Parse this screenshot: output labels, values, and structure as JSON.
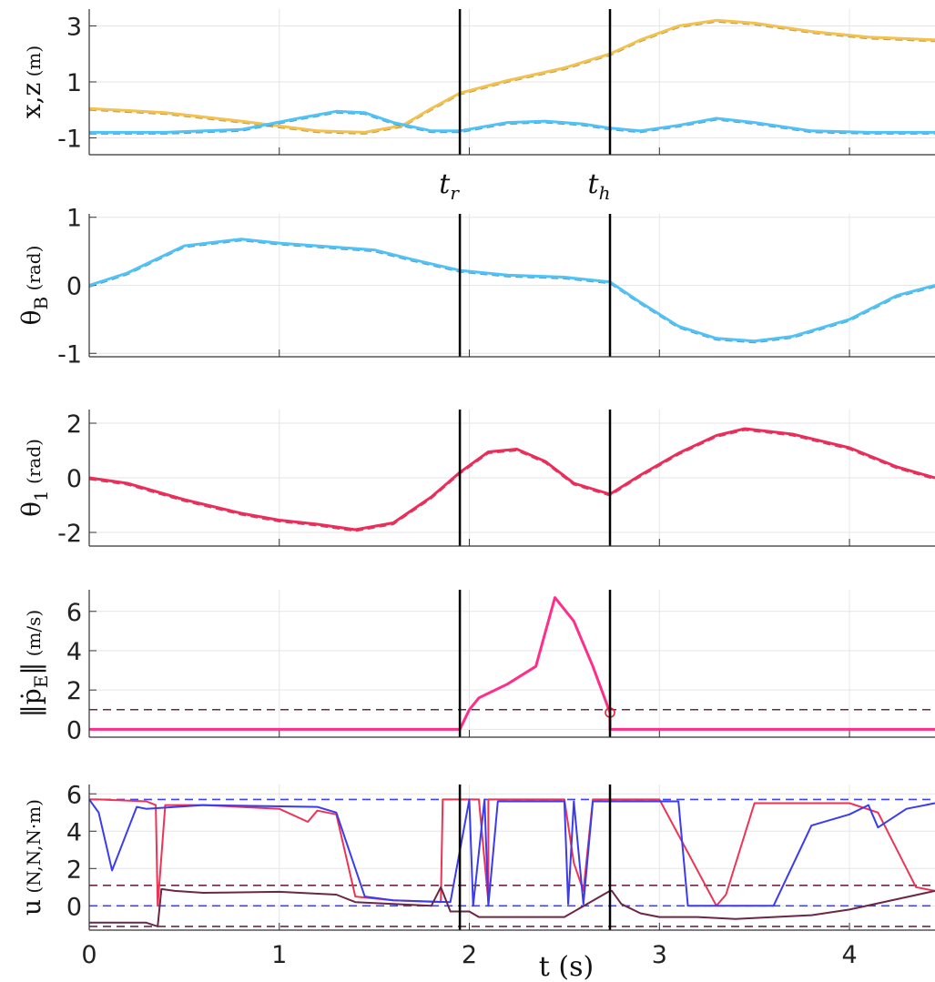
{
  "chart_data": {
    "type": "line",
    "x_label": "t (s)",
    "x_range": [
      0,
      4.45
    ],
    "x_ticks": [
      0,
      1,
      2,
      3,
      4
    ],
    "x_tick_labels": [
      "0",
      "1",
      "2",
      "3",
      "4"
    ],
    "grid": true,
    "events": [
      {
        "label": "t",
        "subscript": "r",
        "t": 1.95
      },
      {
        "label": "t",
        "subscript": "h",
        "t": 2.74
      }
    ],
    "panels": [
      {
        "ylabel": "x,z",
        "yunit": "(m)",
        "ylim": [
          -1.6,
          3.6
        ],
        "yticks": [
          3,
          1,
          -1
        ],
        "series": [
          {
            "color": "#f2c14e",
            "dashed_ref": true,
            "x": [
              0,
              0.4,
              0.8,
              1.2,
              1.45,
              1.65,
              1.8,
              1.95,
              2.2,
              2.5,
              2.74,
              2.9,
              3.1,
              3.3,
              3.5,
              3.8,
              4.1,
              4.45
            ],
            "y": [
              0.05,
              -0.1,
              -0.4,
              -0.75,
              -0.8,
              -0.55,
              0.05,
              0.6,
              1.05,
              1.5,
              2.0,
              2.5,
              3.0,
              3.2,
              3.1,
              2.8,
              2.6,
              2.5
            ]
          },
          {
            "color": "#4fc3f7",
            "dashed_ref": true,
            "x": [
              0,
              0.4,
              0.8,
              1.1,
              1.3,
              1.45,
              1.6,
              1.8,
              1.95,
              2.2,
              2.4,
              2.6,
              2.74,
              2.9,
              3.1,
              3.3,
              3.5,
              3.8,
              4.1,
              4.45
            ],
            "y": [
              -0.8,
              -0.8,
              -0.7,
              -0.3,
              -0.05,
              -0.1,
              -0.45,
              -0.75,
              -0.75,
              -0.45,
              -0.4,
              -0.5,
              -0.65,
              -0.75,
              -0.55,
              -0.3,
              -0.45,
              -0.75,
              -0.8,
              -0.8
            ]
          }
        ]
      },
      {
        "ylabel": "θ",
        "ylabel_sub": "B",
        "yunit": "(rad)",
        "ylim": [
          -1.05,
          1.05
        ],
        "yticks": [
          1,
          0,
          -1
        ],
        "series": [
          {
            "color": "#4fc3f7",
            "dashed_ref": true,
            "x": [
              0,
              0.2,
              0.5,
              0.8,
              1.0,
              1.3,
              1.5,
              1.7,
              1.95,
              2.2,
              2.5,
              2.74,
              2.9,
              3.1,
              3.3,
              3.5,
              3.7,
              4.0,
              4.25,
              4.45
            ],
            "y": [
              0,
              0.18,
              0.58,
              0.68,
              0.62,
              0.56,
              0.52,
              0.38,
              0.22,
              0.15,
              0.12,
              0.05,
              -0.25,
              -0.6,
              -0.78,
              -0.82,
              -0.75,
              -0.5,
              -0.15,
              0
            ]
          }
        ]
      },
      {
        "ylabel": "θ",
        "ylabel_sub": "1",
        "yunit": "(rad)",
        "ylim": [
          -2.5,
          2.5
        ],
        "yticks": [
          2,
          0,
          -2
        ],
        "series": [
          {
            "color": "#ee2c5a",
            "dashed_ref": true,
            "x": [
              0,
              0.2,
              0.5,
              0.8,
              1.0,
              1.2,
              1.4,
              1.6,
              1.8,
              1.95,
              2.1,
              2.25,
              2.4,
              2.55,
              2.74,
              2.9,
              3.1,
              3.3,
              3.45,
              3.7,
              4.0,
              4.25,
              4.45
            ],
            "y": [
              0,
              -0.2,
              -0.8,
              -1.3,
              -1.55,
              -1.7,
              -1.9,
              -1.65,
              -0.7,
              0.2,
              0.95,
              1.05,
              0.6,
              -0.2,
              -0.6,
              0.1,
              0.9,
              1.55,
              1.8,
              1.6,
              1.1,
              0.4,
              0
            ]
          }
        ]
      },
      {
        "ylabel": "‖ṗ",
        "ylabel_sub": "E",
        "ylabel_tail": "‖",
        "yunit": "(m/s)",
        "ylim": [
          -0.4,
          7.1
        ],
        "yticks": [
          6,
          4,
          2,
          0
        ],
        "threshold": 1.0,
        "threshold_color": "#6b2746",
        "marker": {
          "t": 2.74,
          "y": 0.85
        },
        "series": [
          {
            "color": "#ff2e8a",
            "x": [
              0,
              1.95,
              2.0,
              2.05,
              2.2,
              2.35,
              2.45,
              2.55,
              2.65,
              2.74,
              2.7405,
              4.45
            ],
            "y": [
              0,
              0,
              1.0,
              1.6,
              2.3,
              3.2,
              6.7,
              5.5,
              3.2,
              0.85,
              0,
              0
            ]
          }
        ]
      },
      {
        "ylabel": "u",
        "yunit": "(N,N,N·m)",
        "ylim": [
          -1.3,
          6.5
        ],
        "yticks": [
          6,
          4,
          2,
          0
        ],
        "ref_lines": [
          {
            "y": 5.7,
            "color": "#3f3fff"
          },
          {
            "y": 0.0,
            "color": "#3f3fff"
          },
          {
            "y": 1.1,
            "color": "#6b2746"
          },
          {
            "y": -1.1,
            "color": "#6b2746"
          }
        ],
        "series": [
          {
            "color": "#ee3355",
            "x": [
              0,
              0.05,
              0.3,
              0.35,
              0.36,
              0.4,
              0.6,
              1.0,
              1.15,
              1.2,
              1.3,
              1.4,
              1.6,
              1.85,
              1.86,
              2.05,
              2.1,
              2.1,
              2.5,
              2.55,
              2.6,
              2.65,
              2.75,
              3.0,
              3.3,
              3.35,
              3.5,
              4.0,
              4.15,
              4.3,
              4.35,
              4.45
            ],
            "y": [
              5.7,
              5.7,
              5.6,
              5.4,
              0.0,
              5.4,
              5.4,
              5.2,
              4.5,
              5.1,
              4.9,
              0.5,
              0.3,
              0.2,
              5.7,
              5.7,
              0.2,
              5.7,
              5.7,
              2.3,
              0.8,
              5.7,
              5.7,
              5.7,
              0.0,
              0.6,
              5.5,
              5.5,
              5.0,
              2.0,
              1.0,
              0.8
            ]
          },
          {
            "color": "#3b3bf0",
            "x": [
              0,
              0.05,
              0.12,
              0.2,
              0.25,
              0.3,
              0.6,
              1.2,
              1.3,
              1.35,
              1.45,
              1.6,
              1.9,
              2.0,
              2.02,
              2.08,
              2.1,
              2.15,
              2.5,
              2.52,
              2.55,
              2.6,
              2.65,
              3.1,
              3.15,
              3.6,
              3.8,
              4.0,
              4.1,
              4.15,
              4.3,
              4.45
            ],
            "y": [
              5.7,
              5.0,
              1.9,
              4.0,
              5.3,
              5.2,
              5.4,
              5.3,
              5.0,
              3.5,
              0.5,
              0.3,
              0.2,
              5.7,
              0.0,
              5.7,
              0.0,
              5.6,
              5.6,
              0.1,
              5.6,
              0.1,
              5.6,
              5.6,
              0.0,
              0.0,
              4.3,
              4.9,
              5.4,
              4.2,
              5.2,
              5.5
            ]
          },
          {
            "color": "#6b2746",
            "x": [
              0,
              0.3,
              0.36,
              0.38,
              0.45,
              0.6,
              1.0,
              1.3,
              1.4,
              1.8,
              1.85,
              1.9,
              2.0,
              2.05,
              2.3,
              2.5,
              2.74,
              2.75,
              2.8,
              2.9,
              3.0,
              3.2,
              3.4,
              3.8,
              4.0,
              4.45
            ],
            "y": [
              -0.9,
              -0.9,
              -1.1,
              0.9,
              0.8,
              0.7,
              0.75,
              0.6,
              0.2,
              0.0,
              1.0,
              -0.3,
              -0.3,
              -0.6,
              -0.6,
              -0.6,
              0.8,
              0.8,
              0.1,
              -0.4,
              -0.6,
              -0.6,
              -0.7,
              -0.5,
              -0.2,
              0.8
            ]
          }
        ]
      }
    ]
  }
}
